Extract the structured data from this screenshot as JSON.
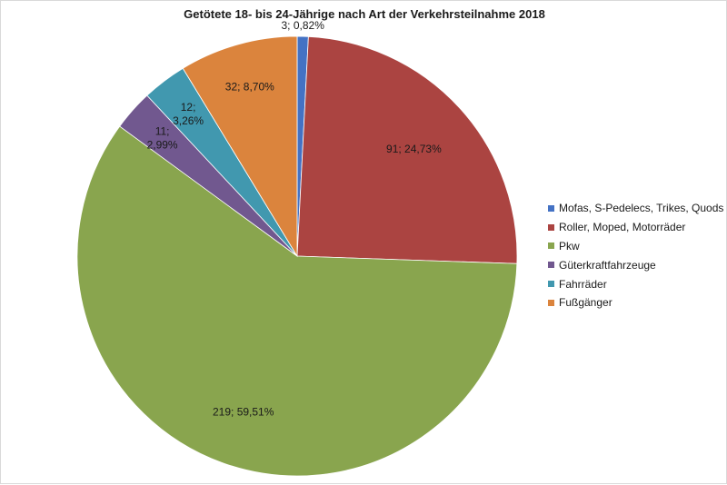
{
  "chart_data": {
    "type": "pie",
    "title": "Getötete 18- bis 24-Jährige nach Art der Verkehrsteilnahme 2018",
    "legend_position": "right",
    "slices": [
      {
        "name": "Mofas, S-Pedelecs, Trikes, Quods",
        "value": 3,
        "percent": 0.82,
        "label": "3; 0,82%",
        "color": "#4472c4"
      },
      {
        "name": "Roller, Moped, Motorräder",
        "value": 91,
        "percent": 24.73,
        "label": "91; 24,73%",
        "color": "#ab4441"
      },
      {
        "name": "Pkw",
        "value": 219,
        "percent": 59.51,
        "label": "219; 59,51%",
        "color": "#89a54e"
      },
      {
        "name": "Güterkraftfahrzeuge",
        "value": 11,
        "percent": 2.99,
        "label": "11; 2,99%",
        "color": "#71588f"
      },
      {
        "name": "Fahrräder",
        "value": 12,
        "percent": 3.26,
        "label": "12; 3,26%",
        "color": "#4198af"
      },
      {
        "name": "Fußgänger",
        "value": 32,
        "percent": 8.7,
        "label": "32; 8,70%",
        "color": "#db843d"
      }
    ]
  }
}
